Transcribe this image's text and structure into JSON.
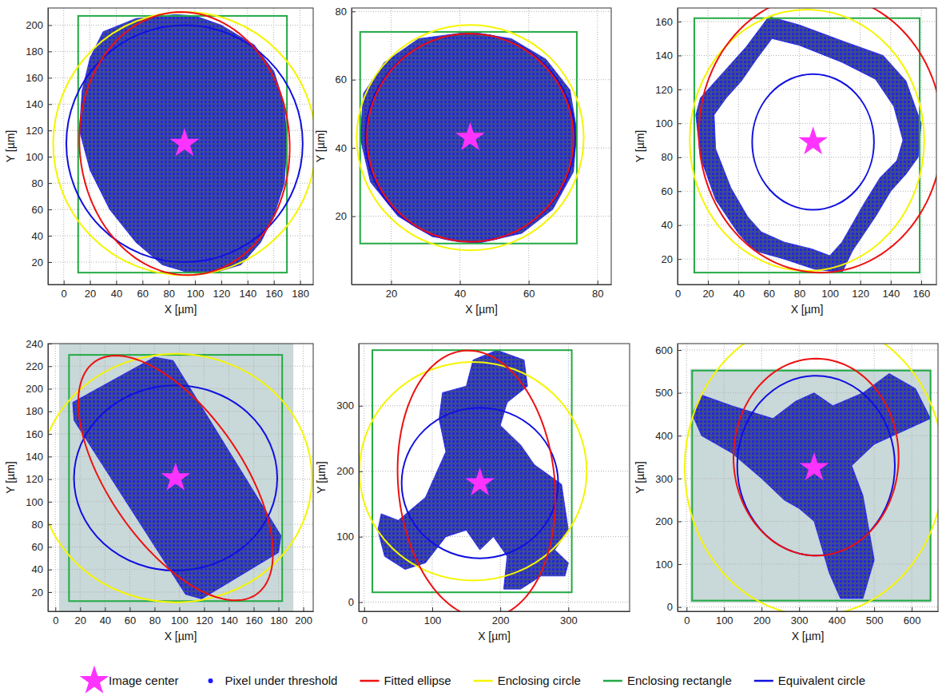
{
  "chart_data": [
    {
      "type": "scatter",
      "xlabel": "X [µm]",
      "ylabel": "Y [µm]",
      "grid": true,
      "xlim": [
        -12,
        190
      ],
      "ylim": [
        3,
        213
      ],
      "xticks": [
        0,
        20,
        40,
        60,
        80,
        100,
        120,
        140,
        160,
        180
      ],
      "yticks": [
        20,
        40,
        60,
        80,
        100,
        120,
        140,
        160,
        180,
        200
      ],
      "center": {
        "x": 92,
        "y": 110
      },
      "pixels": {
        "rings": [
          {
            "x": [
              30,
              55,
              85,
              100,
              120,
              145,
              160,
              168,
              170,
              168,
              160,
              150,
              135,
              115,
              95,
              75,
              55,
              35,
              20,
              12,
              14,
              20
            ],
            "y": [
              195,
              205,
              208,
              207,
              200,
              185,
              165,
              140,
              110,
              80,
              55,
              35,
              18,
              12,
              12,
              18,
              35,
              60,
              90,
              120,
              150,
              175
            ]
          }
        ]
      },
      "ellipse": {
        "cx": 92,
        "cy": 110,
        "a": 100,
        "b": 80,
        "angle": 94
      },
      "enclosing_circle": {
        "cx": 92,
        "cy": 110,
        "r": 100
      },
      "enclosing_rectangle": {
        "x": [
          11,
          170
        ],
        "y": [
          12,
          207
        ]
      },
      "equivalent_circle": {
        "cx": 92,
        "cy": 110,
        "r": 90
      }
    },
    {
      "type": "scatter",
      "xlabel": "X [µm]",
      "ylabel": "Y [µm]",
      "grid": true,
      "xlim": [
        8.5,
        84
      ],
      "ylim": [
        0,
        81
      ],
      "xticks": [
        20,
        40,
        60,
        80
      ],
      "yticks": [
        20,
        40,
        60,
        80
      ],
      "center": {
        "x": 43,
        "y": 43
      },
      "pixels": {
        "rings": [
          {
            "x": [
              43,
              55,
              65,
              72,
              74,
              73,
              67,
              58,
              45,
              32,
              22,
              14,
              11,
              12,
              18,
              28
            ],
            "y": [
              74,
              72,
              66,
              57,
              45,
              33,
              22,
              15,
              12,
              14,
              20,
              30,
              43,
              56,
              65,
              72
            ]
          }
        ]
      },
      "ellipse": {
        "cx": 43,
        "cy": 43,
        "a": 30.5,
        "b": 30,
        "angle": 100
      },
      "enclosing_circle": {
        "cx": 43,
        "cy": 43,
        "r": 33
      },
      "enclosing_rectangle": {
        "x": [
          11,
          74
        ],
        "y": [
          12,
          74
        ]
      },
      "equivalent_circle": {
        "cx": 43,
        "cy": 43,
        "r": 30.5
      }
    },
    {
      "type": "scatter",
      "xlabel": "X [µm]",
      "ylabel": "Y [µm]",
      "grid": true,
      "xlim": [
        0,
        170
      ],
      "ylim": [
        5,
        168
      ],
      "xticks": [
        0,
        20,
        40,
        60,
        80,
        100,
        120,
        140,
        160
      ],
      "yticks": [
        20,
        40,
        60,
        80,
        100,
        120,
        140,
        160
      ],
      "center": {
        "x": 89,
        "y": 89
      },
      "pixels": {
        "rings": [
          {
            "x": [
              60,
              80,
              110,
              135,
              150,
              160,
              158,
              150,
              140,
              130,
              115,
              108,
              90,
              70,
              50,
              40,
              25,
              15,
              12,
              15,
              30,
              45
            ],
            "y": [
              163,
              158,
              148,
              140,
              125,
              100,
              80,
              70,
              60,
              45,
              25,
              12,
              14,
              20,
              25,
              35,
              55,
              80,
              105,
              115,
              130,
              145
            ]
          },
          {
            "x": [
              62,
              80,
              108,
              130,
              142,
              148,
              144,
              133,
              122,
              108,
              100,
              88,
              70,
              55,
              46,
              35,
              25,
              24,
              32,
              42,
              52
            ],
            "y": [
              150,
              146,
              136,
              126,
              110,
              90,
              78,
              68,
              52,
              30,
              22,
              26,
              30,
              36,
              45,
              62,
              85,
              105,
              115,
              125,
              138
            ]
          }
        ]
      },
      "ellipse": {
        "cx": 94,
        "cy": 94,
        "a": 82,
        "b": 80,
        "angle": 90
      },
      "enclosing_circle": {
        "cx": 85,
        "cy": 90,
        "r": 77
      },
      "enclosing_rectangle": {
        "x": [
          11,
          159
        ],
        "y": [
          12,
          162
        ]
      },
      "equivalent_circle": {
        "cx": 89,
        "cy": 89,
        "r": 40
      }
    },
    {
      "type": "scatter",
      "xlabel": "X [µm]",
      "ylabel": "Y [µm]",
      "grid": true,
      "xlim": [
        -6,
        208
      ],
      "ylim": [
        3,
        240
      ],
      "xticks": [
        0,
        20,
        40,
        60,
        80,
        100,
        120,
        140,
        160,
        180,
        200
      ],
      "yticks": [
        20,
        40,
        60,
        80,
        100,
        120,
        140,
        160,
        180,
        200,
        220,
        240
      ],
      "image_extent": {
        "x": [
          3,
          192
        ],
        "y": [
          3,
          240
        ]
      },
      "center": {
        "x": 97,
        "y": 121
      },
      "pixels": {
        "rings": [
          {
            "x": [
              14,
              80,
              95,
              182,
              180,
              118,
              105,
              15
            ],
            "y": [
              188,
              228,
              225,
              70,
              55,
              14,
              18,
              172
            ]
          }
        ]
      },
      "ellipse": {
        "cx": 97,
        "cy": 121,
        "a": 122,
        "b": 55,
        "angle": 121
      },
      "enclosing_circle": {
        "cx": 97,
        "cy": 121,
        "r": 110
      },
      "enclosing_rectangle": {
        "x": [
          11,
          183
        ],
        "y": [
          12,
          230
        ]
      },
      "equivalent_circle": {
        "cx": 97,
        "cy": 121,
        "r": 82
      }
    },
    {
      "type": "scatter",
      "xlabel": "X [µm]",
      "ylabel": "Y [µm]",
      "grid": true,
      "xlim": [
        -8,
        390
      ],
      "ylim": [
        -14,
        395
      ],
      "xticks": [
        0,
        100,
        200,
        300
      ],
      "yticks": [
        0,
        100,
        200,
        300
      ],
      "center": {
        "x": 170,
        "y": 182
      },
      "pixels": {
        "rings": [
          {
            "x": [
              25,
              50,
              90,
              120,
              110,
              115,
              150,
              160,
              195,
              235,
              240,
              210,
              200,
              230,
              250,
              290,
              300,
              280,
              300,
              295,
              260,
              230,
              205,
              210,
              190,
              170,
              150,
              120,
              90,
              60,
              30,
              20
            ],
            "y": [
              135,
              125,
              160,
              230,
              280,
              320,
              330,
              370,
              385,
              370,
              330,
              305,
              270,
              240,
              210,
              180,
              110,
              80,
              60,
              40,
              40,
              20,
              20,
              70,
              100,
              80,
              110,
              100,
              60,
              50,
              70,
              110
            ]
          }
        ]
      },
      "ellipse": {
        "cx": 165,
        "cy": 180,
        "a": 205,
        "b": 115,
        "angle": 95
      },
      "enclosing_circle": {
        "cx": 160,
        "cy": 200,
        "r": 167
      },
      "enclosing_rectangle": {
        "x": [
          12,
          305
        ],
        "y": [
          15,
          385
        ]
      },
      "equivalent_circle": {
        "cx": 170,
        "cy": 182,
        "r": 115
      }
    },
    {
      "type": "scatter",
      "xlabel": "X [µm]",
      "ylabel": "Y [µm]",
      "grid": true,
      "xlim": [
        -24,
        670
      ],
      "ylim": [
        -10,
        615
      ],
      "xticks": [
        0,
        100,
        200,
        300,
        400,
        500,
        600
      ],
      "yticks": [
        0,
        100,
        200,
        300,
        400,
        500,
        600
      ],
      "image_extent": {
        "x": [
          10,
          652
        ],
        "y": [
          10,
          556
        ]
      },
      "center": {
        "x": 340,
        "y": 325
      },
      "pixels": {
        "rings": [
          {
            "x": [
              15,
              40,
              120,
              230,
              290,
              340,
              390,
              470,
              540,
              610,
              650,
              600,
              500,
              440,
              470,
              500,
              470,
              410,
              380,
              340,
              300,
              260,
              200,
              120,
              40
            ],
            "y": [
              450,
              495,
              470,
              440,
              480,
              500,
              470,
              500,
              545,
              510,
              440,
              420,
              380,
              330,
              260,
              110,
              20,
              20,
              80,
              200,
              230,
              250,
              300,
              360,
              400
            ]
          }
        ]
      },
      "ellipse": {
        "cx": 345,
        "cy": 350,
        "a": 230,
        "b": 220,
        "angle": 90
      },
      "enclosing_circle": {
        "cx": 340,
        "cy": 325,
        "r": 345
      },
      "enclosing_rectangle": {
        "x": [
          15,
          650
        ],
        "y": [
          15,
          552
        ]
      },
      "equivalent_circle": {
        "cx": 345,
        "cy": 330,
        "r": 210
      }
    }
  ],
  "legend": "bottom",
  "legend_items": [
    {
      "name": "Image center",
      "color": "#ff33ff",
      "marker": "star"
    },
    {
      "name": "Pixel under threshold",
      "color": "#1a1aff",
      "marker": "dot"
    },
    {
      "name": "Fitted ellipse",
      "color": "#ee1111",
      "marker": "line"
    },
    {
      "name": "Enclosing circle",
      "color": "#f5f500",
      "marker": "line"
    },
    {
      "name": "Enclosing rectangle",
      "color": "#22aa44",
      "marker": "line"
    },
    {
      "name": "Equivalent circle",
      "color": "#1010e0",
      "marker": "line"
    }
  ]
}
